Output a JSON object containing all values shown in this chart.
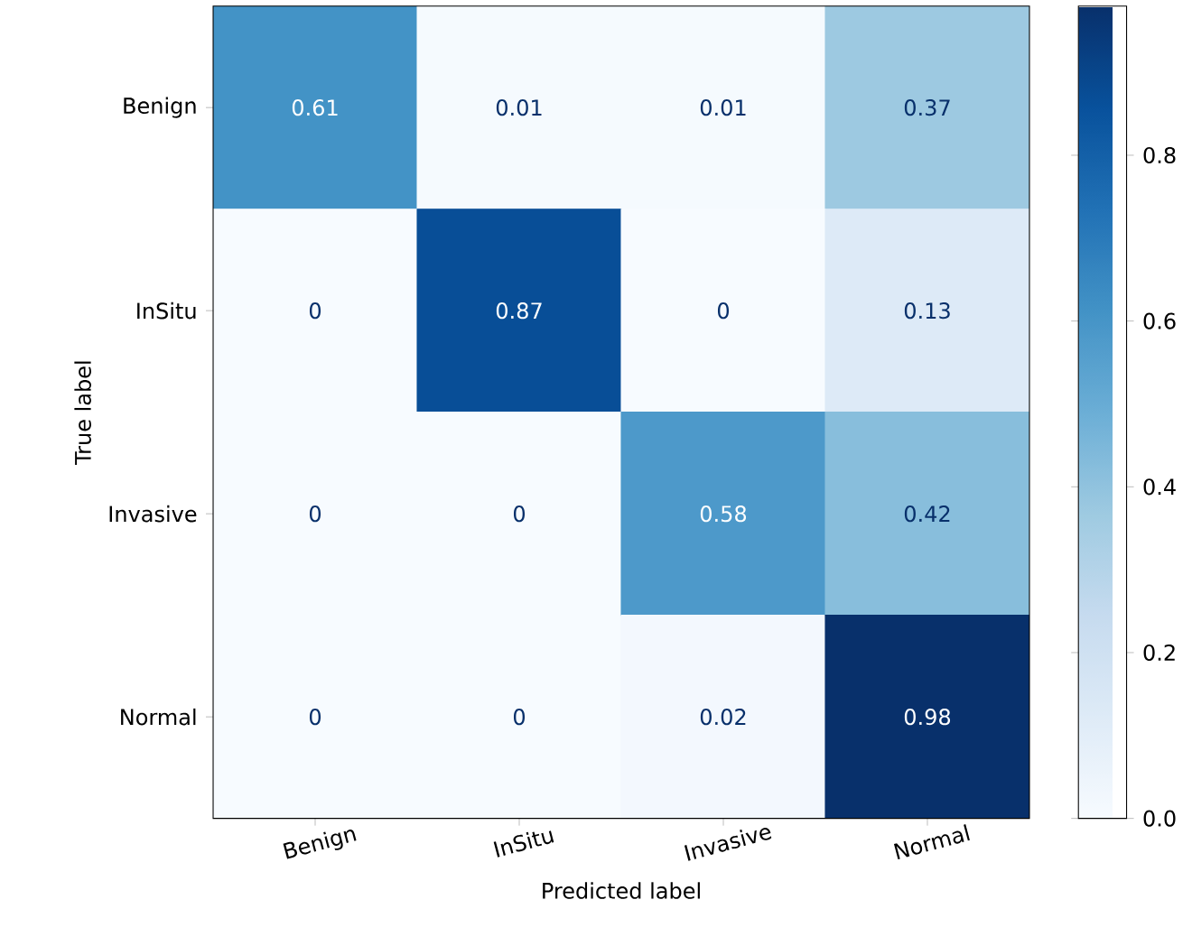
{
  "chart_data": {
    "type": "heatmap",
    "xlabel": "Predicted label",
    "ylabel": "True label",
    "categories": [
      "Benign",
      "InSitu",
      "Invasive",
      "Normal"
    ],
    "y_categories": [
      "Benign",
      "InSitu",
      "Invasive",
      "Normal"
    ],
    "cells": [
      [
        0.61,
        0.01,
        0.01,
        0.37
      ],
      [
        0,
        0.87,
        0,
        0.13
      ],
      [
        0,
        0,
        0.58,
        0.42
      ],
      [
        0,
        0,
        0.02,
        0.98
      ]
    ],
    "data_labels": true,
    "clim": [
      0,
      0.98
    ],
    "cticks": [
      {
        "value": 0,
        "label": "0.0"
      },
      0.2,
      0.4,
      0.6,
      0.8
    ]
  }
}
